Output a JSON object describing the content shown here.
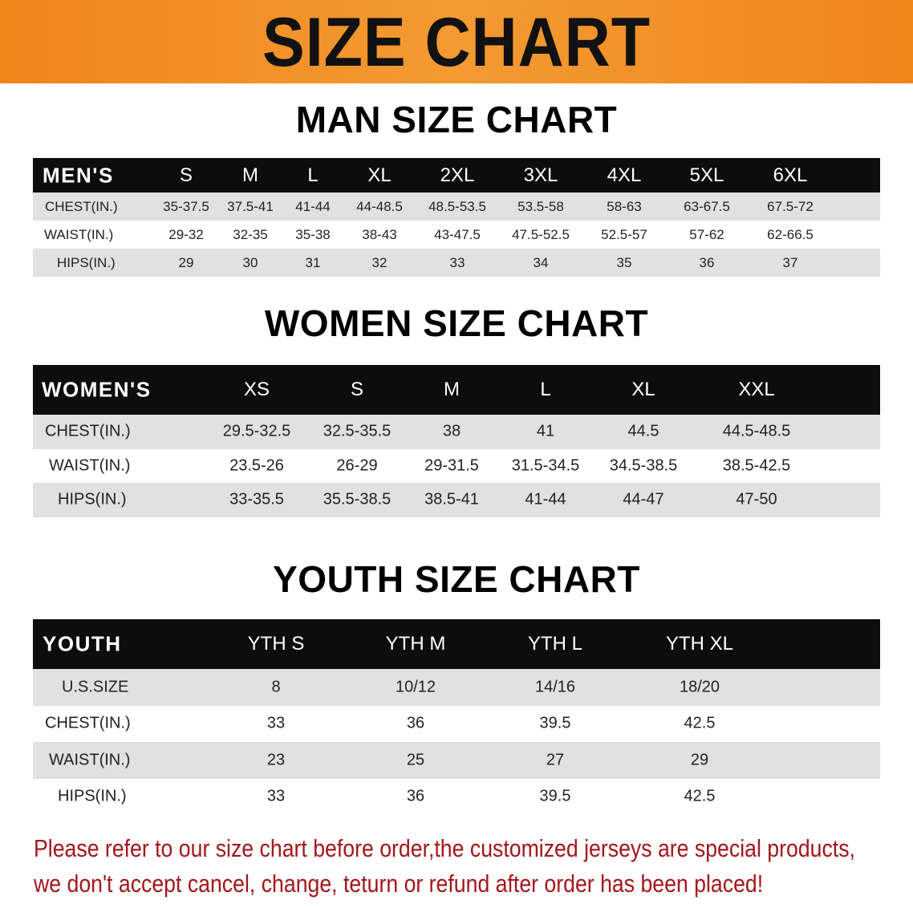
{
  "banner": {
    "title": "SIZE CHART"
  },
  "men": {
    "title": "MAN SIZE CHART",
    "header": [
      "MEN'S",
      "S",
      "M",
      "L",
      "XL",
      "2XL",
      "3XL",
      "4XL",
      "5XL",
      "6XL"
    ],
    "rows": [
      [
        "CHEST(IN.)",
        "35-37.5",
        "37.5-41",
        "41-44",
        "44-48.5",
        "48.5-53.5",
        "53.5-58",
        "58-63",
        "63-67.5",
        "67.5-72"
      ],
      [
        "WAIST(IN.)",
        "29-32",
        "32-35",
        "35-38",
        "38-43",
        "43-47.5",
        "47.5-52.5",
        "52.5-57",
        "57-62",
        "62-66.5"
      ],
      [
        "HIPS(IN.)",
        "29",
        "30",
        "31",
        "32",
        "33",
        "34",
        "35",
        "36",
        "37"
      ]
    ]
  },
  "women": {
    "title": "WOMEN SIZE CHART",
    "header": [
      "WOMEN'S",
      "XS",
      "S",
      "M",
      "L",
      "XL",
      "XXL"
    ],
    "rows": [
      [
        "CHEST(IN.)",
        "29.5-32.5",
        "32.5-35.5",
        "38",
        "41",
        "44.5",
        "44.5-48.5"
      ],
      [
        "WAIST(IN.)",
        "23.5-26",
        "26-29",
        "29-31.5",
        "31.5-34.5",
        "34.5-38.5",
        "38.5-42.5"
      ],
      [
        "HIPS(IN.)",
        "33-35.5",
        "35.5-38.5",
        "38.5-41",
        "41-44",
        "44-47",
        "47-50"
      ]
    ]
  },
  "youth": {
    "title": "YOUTH SIZE CHART",
    "header": [
      "YOUTH",
      "YTH S",
      "YTH M",
      "YTH L",
      "YTH XL"
    ],
    "rows": [
      [
        "U.S.SIZE",
        "8",
        "10/12",
        "14/16",
        "18/20"
      ],
      [
        "CHEST(IN.)",
        "33",
        "36",
        "39.5",
        "42.5"
      ],
      [
        "WAIST(IN.)",
        "23",
        "25",
        "27",
        "29"
      ],
      [
        "HIPS(IN.)",
        "33",
        "36",
        "39.5",
        "42.5"
      ]
    ]
  },
  "note": {
    "line1": "Please refer to our size chart before order,the customized jerseys are special products,",
    "line2": "we don't accept cancel, change, teturn or refund after order has been placed!"
  },
  "colors": {
    "banner": "#f08518",
    "header_row": "#0d0d0d",
    "stripe": "#e1e1e1",
    "note": "#a3161b"
  }
}
